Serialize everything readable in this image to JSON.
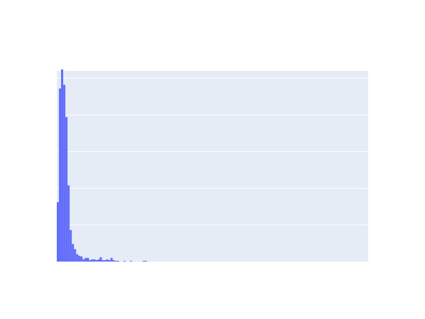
{
  "chart_data": {
    "type": "bar",
    "subtype": "histogram",
    "title": "",
    "xlabel": "",
    "ylabel": "",
    "grid": true,
    "legend": "none",
    "colors": {
      "bar": "#636efa",
      "plot_background": "#e5ecf6",
      "gridline": "#ffffff",
      "page_background": "#ffffff"
    },
    "xlim": [
      0,
      145
    ],
    "ylim": [
      0,
      5.2
    ],
    "gridlines_y": [
      1,
      2,
      3,
      4,
      5
    ],
    "bin_width": 1,
    "series": [
      {
        "values": [
          1.62,
          4.72,
          5.24,
          4.82,
          3.94,
          2.08,
          0.86,
          0.48,
          0.34,
          0.2,
          0.16,
          0.14,
          0.06,
          0.1,
          0.1,
          0.04,
          0.06,
          0.06,
          0.04,
          0.06,
          0.12,
          0.04,
          0.04,
          0.06,
          0.04,
          0.1,
          0.04,
          0.02,
          0.02,
          0,
          0,
          0.02,
          0,
          0,
          0.02,
          0,
          0,
          0,
          0,
          0,
          0.02,
          0.02
        ]
      }
    ]
  }
}
